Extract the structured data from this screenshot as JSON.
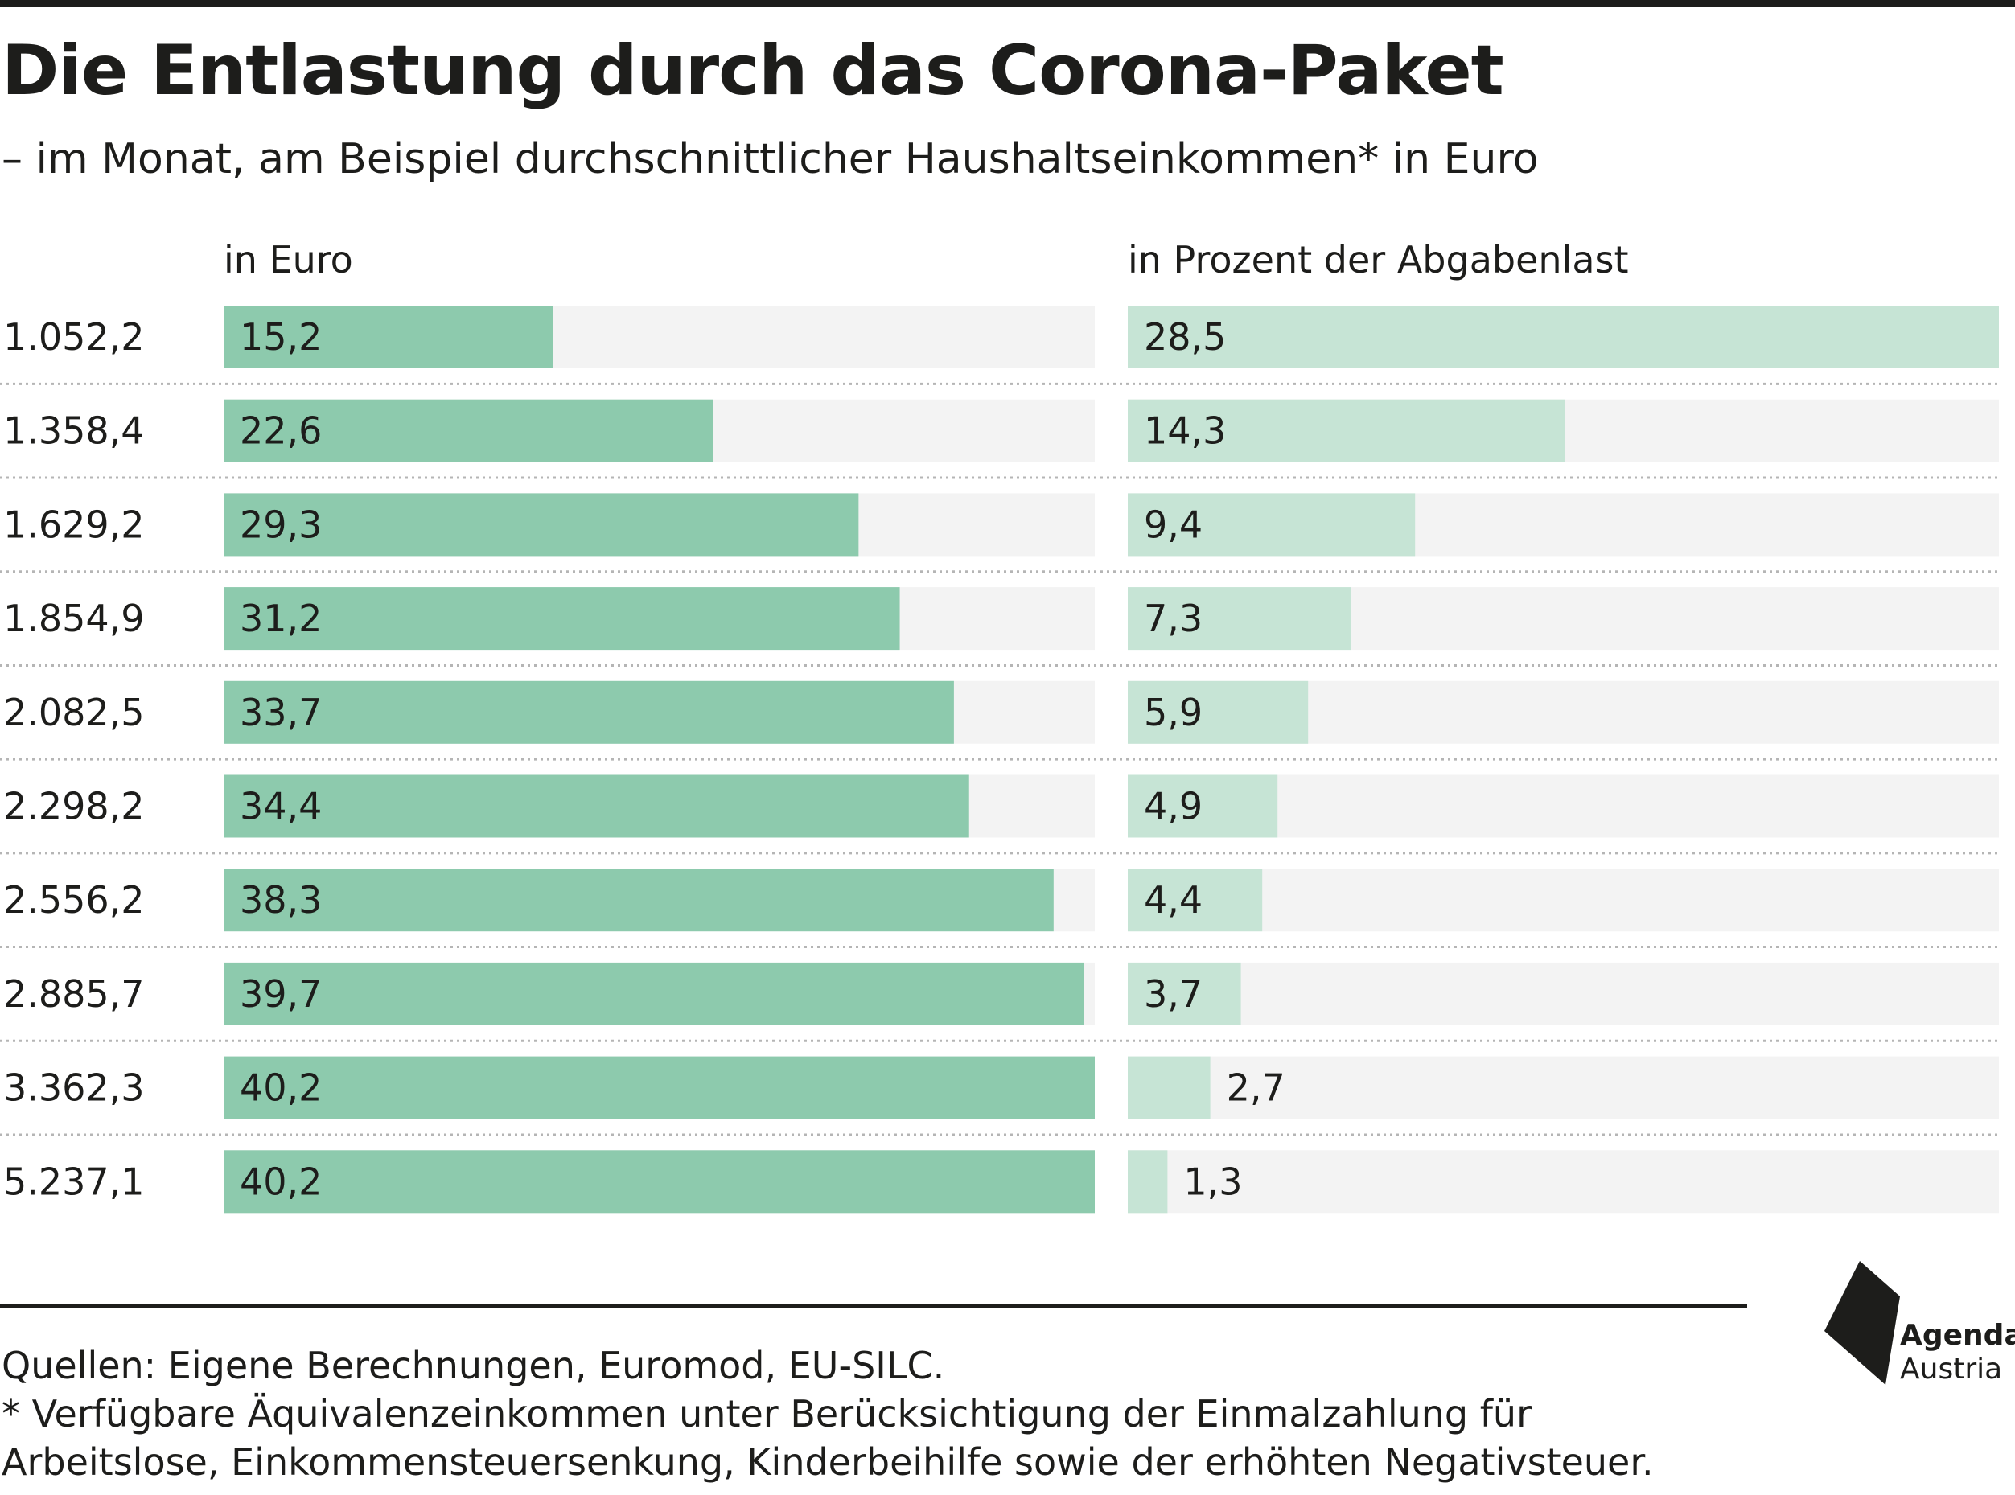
{
  "header": {
    "title": "Die Entlastung durch das Corona-Paket",
    "subtitle": "– im Monat, am Beispiel durchschnittlicher Haushaltseinkommen* in Euro"
  },
  "columns": {
    "left": "in Euro",
    "right": "in Prozent der Abgabenlast"
  },
  "footer": {
    "source_line": "Quellen: Eigene Berechnungen, Euromod, EU-SILC.",
    "note_line1": "* Verfügbare Äquivalenzeinkommen unter Berücksichtigung der Einmalzahlung für",
    "note_line2": "Arbeitslose, Einkommensteuersenkung, Kinderbeihilfe sowie der erhöhten Negativsteuer."
  },
  "logo": {
    "line1": "Agenda",
    "line2": "Austria",
    "icon": "agenda-austria-logo-icon"
  },
  "colors": {
    "bar_left": "#8dcaad",
    "bar_right": "#c6e4d5",
    "track": "#f3f3f3",
    "text": "#1d1d1b"
  },
  "chart_data": [
    {
      "type": "bar",
      "orientation": "horizontal",
      "title": "in Euro",
      "categories": [
        "1.052,2",
        "1.358,4",
        "1.629,2",
        "1.854,9",
        "2.082,5",
        "2.298,2",
        "2.556,2",
        "2.885,7",
        "3.362,3",
        "5.237,1"
      ],
      "values": [
        15.2,
        22.6,
        29.3,
        31.2,
        33.7,
        34.4,
        38.3,
        39.7,
        40.2,
        40.2
      ],
      "labels": [
        "15,2",
        "22,6",
        "29,3",
        "31,2",
        "33,7",
        "34,4",
        "38,3",
        "39,7",
        "40,2",
        "40,2"
      ],
      "xlim": [
        0,
        40.2
      ]
    },
    {
      "type": "bar",
      "orientation": "horizontal",
      "title": "in Prozent der Abgabenlast",
      "categories": [
        "1.052,2",
        "1.358,4",
        "1.629,2",
        "1.854,9",
        "2.082,5",
        "2.298,2",
        "2.556,2",
        "2.885,7",
        "3.362,3",
        "5.237,1"
      ],
      "values": [
        28.5,
        14.3,
        9.4,
        7.3,
        5.9,
        4.9,
        4.4,
        3.7,
        2.7,
        1.3
      ],
      "labels": [
        "28,5",
        "14,3",
        "9,4",
        "7,3",
        "5,9",
        "4,9",
        "4,4",
        "3,7",
        "2,7",
        "1,3"
      ],
      "xlim": [
        0,
        28.5
      ]
    }
  ]
}
